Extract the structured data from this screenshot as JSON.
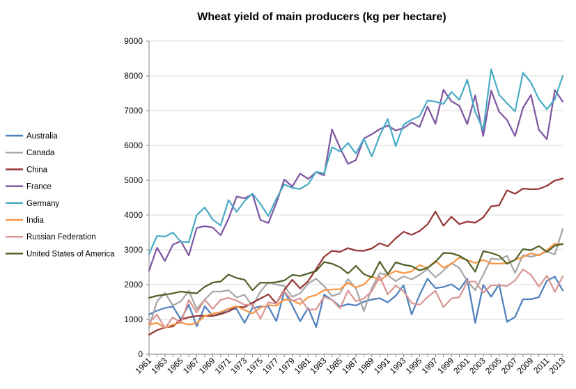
{
  "chart_data": {
    "type": "line",
    "title": "Wheat yield of main producers (kg per hectare)",
    "xlabel": "",
    "ylabel": "",
    "ylim": [
      0,
      9000
    ],
    "yticks": [
      0,
      1000,
      2000,
      3000,
      4000,
      5000,
      6000,
      7000,
      8000,
      9000
    ],
    "x": [
      1961,
      1962,
      1963,
      1964,
      1965,
      1966,
      1967,
      1968,
      1969,
      1970,
      1971,
      1972,
      1973,
      1974,
      1975,
      1976,
      1977,
      1978,
      1979,
      1980,
      1981,
      1982,
      1983,
      1984,
      1985,
      1986,
      1987,
      1988,
      1989,
      1990,
      1991,
      1992,
      1993,
      1994,
      1995,
      1996,
      1997,
      1998,
      1999,
      2000,
      2001,
      2002,
      2003,
      2004,
      2005,
      2006,
      2007,
      2008,
      2009,
      2010,
      2011,
      2012,
      2013
    ],
    "xticks": [
      "1961",
      "1963",
      "1965",
      "1967",
      "1969",
      "1971",
      "1973",
      "1975",
      "1977",
      "1979",
      "1981",
      "1983",
      "1985",
      "1987",
      "1989",
      "1991",
      "1993",
      "1995",
      "1997",
      "1999",
      "2001",
      "2003",
      "2005",
      "2007",
      "2009",
      "2011",
      "2013"
    ],
    "grid": true,
    "legend": "left",
    "series": [
      {
        "name": "Australia",
        "color": "#4f81bd",
        "values": [
          1140,
          1250,
          1330,
          1370,
          1000,
          1420,
          800,
          1380,
          1100,
          1180,
          1300,
          1300,
          900,
          1330,
          1370,
          1370,
          950,
          1800,
          1400,
          950,
          1330,
          780,
          1710,
          1560,
          1370,
          1440,
          1400,
          1510,
          1570,
          1610,
          1490,
          1680,
          1980,
          1140,
          1700,
          2170,
          1900,
          1930,
          2010,
          1850,
          2170,
          900,
          1990,
          1650,
          2010,
          930,
          1070,
          1580,
          1580,
          1640,
          2110,
          2230,
          1830
        ]
      },
      {
        "name": "Canada",
        "color": "#a6a6a6",
        "values": [
          770,
          1520,
          1760,
          1400,
          1520,
          1820,
          1300,
          1570,
          1800,
          1800,
          1840,
          1630,
          1710,
          1380,
          1800,
          2070,
          2000,
          1960,
          1650,
          1750,
          2030,
          2170,
          1960,
          1670,
          1750,
          2160,
          1890,
          1240,
          1900,
          2330,
          2270,
          2100,
          2240,
          2150,
          2280,
          2450,
          2210,
          2400,
          2620,
          2480,
          2100,
          1840,
          2280,
          2750,
          2720,
          2830,
          2340,
          2850,
          2800,
          2860,
          2950,
          2870,
          3600
        ]
      },
      {
        "name": "China",
        "color": "#953735",
        "values": [
          560,
          690,
          770,
          800,
          1000,
          1060,
          1100,
          1100,
          1100,
          1150,
          1230,
          1360,
          1350,
          1480,
          1600,
          1720,
          1460,
          1850,
          2140,
          1890,
          2100,
          2450,
          2800,
          2970,
          2940,
          3050,
          2980,
          2970,
          3040,
          3190,
          3100,
          3330,
          3520,
          3430,
          3540,
          3730,
          4100,
          3690,
          3950,
          3740,
          3810,
          3780,
          3930,
          4250,
          4280,
          4710,
          4610,
          4760,
          4740,
          4750,
          4840,
          4990,
          5050
        ]
      },
      {
        "name": "France",
        "color": "#7e57a2",
        "values": [
          2400,
          3060,
          2680,
          3150,
          3250,
          2840,
          3630,
          3680,
          3640,
          3420,
          3900,
          4530,
          4480,
          4600,
          3860,
          3770,
          4350,
          5020,
          4820,
          5190,
          5040,
          5230,
          5140,
          6460,
          5930,
          5470,
          5580,
          6200,
          6320,
          6470,
          6570,
          6430,
          6500,
          6660,
          6530,
          7120,
          6620,
          7600,
          7270,
          7140,
          6610,
          7440,
          6270,
          7580,
          6970,
          6730,
          6270,
          7080,
          7450,
          6450,
          6180,
          7590,
          7260
        ]
      },
      {
        "name": "Germany",
        "color": "#4bacc6",
        "values": [
          2880,
          3400,
          3380,
          3500,
          3230,
          3220,
          4000,
          4220,
          3870,
          3700,
          4430,
          4090,
          4400,
          4620,
          4320,
          3970,
          4470,
          4880,
          4780,
          4750,
          4890,
          5240,
          5200,
          5950,
          5830,
          6070,
          5770,
          6190,
          5680,
          6290,
          6760,
          5980,
          6600,
          6740,
          6840,
          7290,
          7260,
          7190,
          7540,
          7310,
          7890,
          6960,
          6450,
          8190,
          7460,
          7210,
          6980,
          8090,
          7810,
          7330,
          7040,
          7330,
          8000
        ]
      },
      {
        "name": "India",
        "color": "#f79646",
        "values": [
          850,
          900,
          760,
          850,
          910,
          850,
          890,
          1100,
          1170,
          1210,
          1310,
          1380,
          1270,
          1170,
          1340,
          1410,
          1390,
          1570,
          1550,
          1440,
          1640,
          1700,
          1840,
          1860,
          1870,
          2050,
          1920,
          2000,
          2240,
          2120,
          2280,
          2390,
          2330,
          2380,
          2560,
          2480,
          2680,
          2490,
          2590,
          2780,
          2710,
          2620,
          2710,
          2610,
          2600,
          2620,
          2710,
          2800,
          2900,
          2840,
          2990,
          3180,
          3150
        ]
      },
      {
        "name": "Russian Federation",
        "color": "#d99694",
        "values": [
          900,
          1140,
          750,
          1060,
          900,
          1560,
          1200,
          1570,
          1300,
          1560,
          1620,
          1540,
          1420,
          1420,
          1020,
          1490,
          1450,
          1810,
          1530,
          1610,
          1280,
          1290,
          1650,
          1560,
          1320,
          1830,
          1520,
          1600,
          1810,
          2230,
          1720,
          1970,
          1810,
          1470,
          1420,
          1640,
          1820,
          1350,
          1600,
          1640,
          2080,
          2090,
          1770,
          1980,
          1980,
          1960,
          2120,
          2440,
          2280,
          1940,
          2260,
          1790,
          2240
        ]
      },
      {
        "name": "United States of America",
        "color": "#4f6228",
        "values": [
          1620,
          1680,
          1710,
          1750,
          1800,
          1770,
          1750,
          1940,
          2060,
          2090,
          2290,
          2190,
          2140,
          1840,
          2060,
          2050,
          2070,
          2120,
          2280,
          2250,
          2320,
          2390,
          2650,
          2600,
          2500,
          2320,
          2540,
          2300,
          2210,
          2660,
          2300,
          2640,
          2570,
          2530,
          2410,
          2480,
          2650,
          2910,
          2900,
          2830,
          2690,
          2370,
          2960,
          2910,
          2830,
          2600,
          2710,
          3020,
          2990,
          3110,
          2940,
          3120,
          3170
        ]
      }
    ]
  }
}
